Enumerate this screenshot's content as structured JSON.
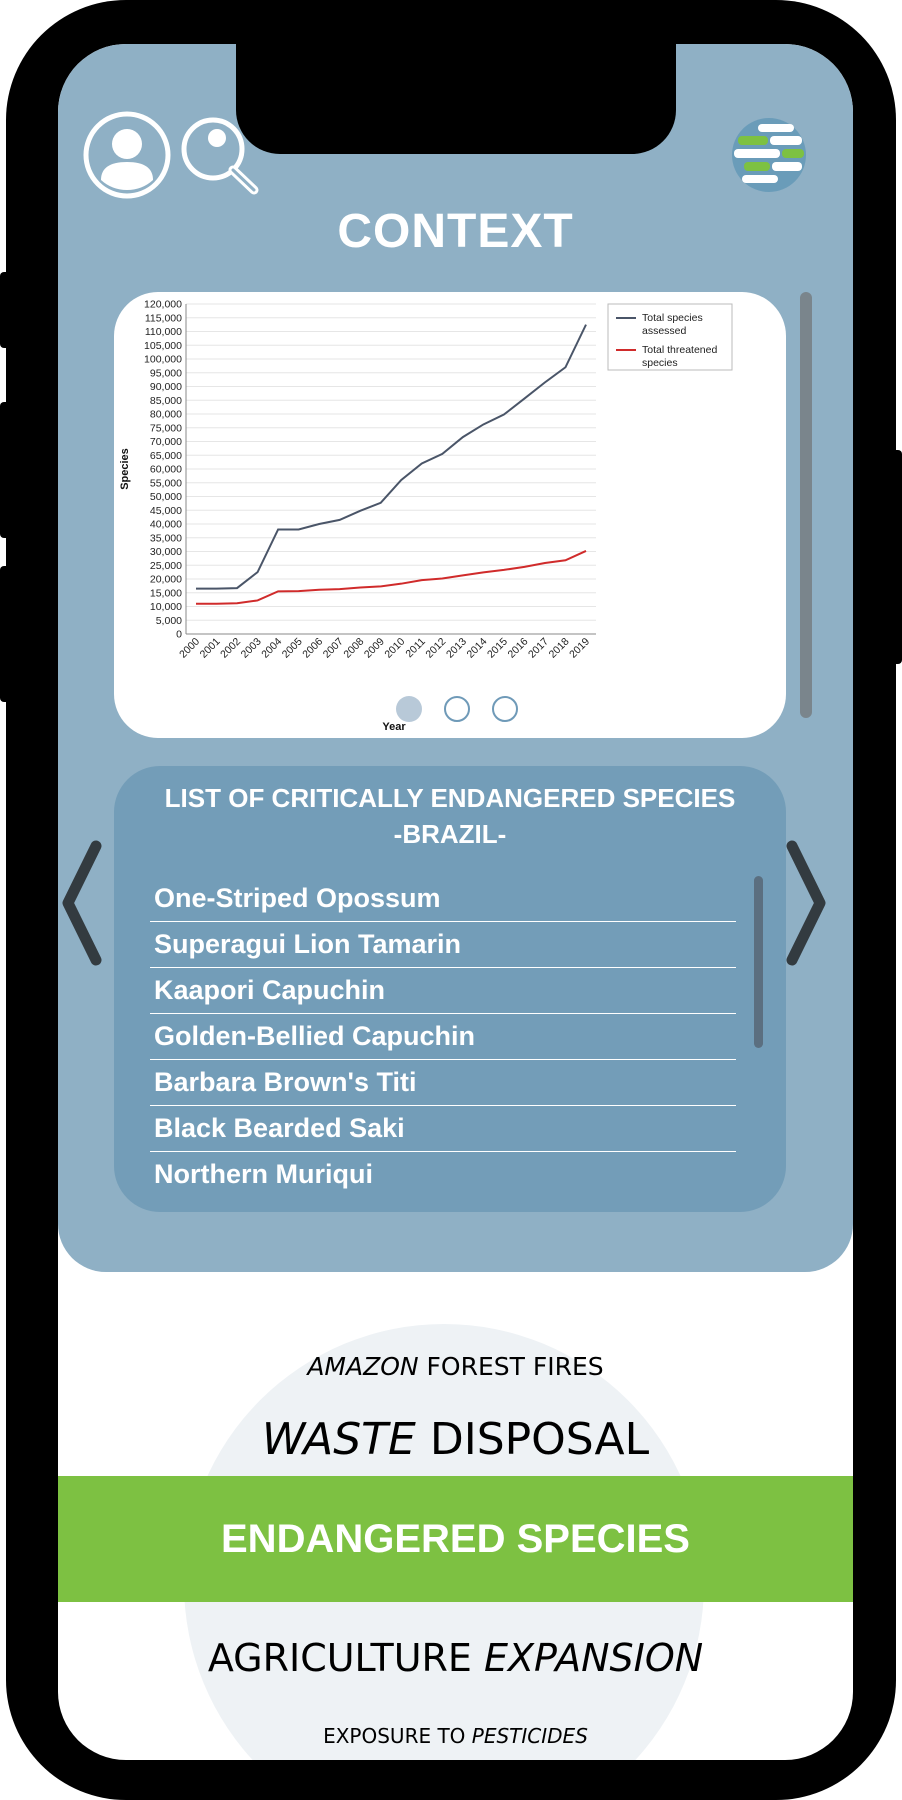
{
  "header": {
    "title": "CONTEXT",
    "icons": [
      "user-icon",
      "search-icon",
      "globe-logo-icon"
    ]
  },
  "chart_data": {
    "type": "line",
    "title": "",
    "xlabel": "Year",
    "ylabel": "Species",
    "x": [
      "2000",
      "2001",
      "2002",
      "2003",
      "2004",
      "2005",
      "2006",
      "2007",
      "2008",
      "2009",
      "2010",
      "2011",
      "2012",
      "2013",
      "2014",
      "2015",
      "2016",
      "2017",
      "2018",
      "2019"
    ],
    "ylim": [
      0,
      120000
    ],
    "yticks": [
      "0",
      "5,000",
      "10,000",
      "15,000",
      "20,000",
      "25,000",
      "30,000",
      "35,000",
      "40,000",
      "45,000",
      "50,000",
      "55,000",
      "60,000",
      "65,000",
      "70,000",
      "75,000",
      "80,000",
      "85,000",
      "90,000",
      "95,000",
      "100,000",
      "105,000",
      "110,000",
      "115,000",
      "120,000"
    ],
    "grid": true,
    "legend": "top-right",
    "series": [
      {
        "name": "Total species assessed",
        "color": "#4a5568",
        "values": [
          16500,
          16500,
          16700,
          22500,
          38000,
          38000,
          40000,
          41500,
          44800,
          47700,
          56000,
          62000,
          65500,
          71600,
          76200,
          79800,
          85600,
          91500,
          97000,
          112500
        ]
      },
      {
        "name": "Total threatened species",
        "color": "#d02b2b",
        "values": [
          11000,
          11000,
          11200,
          12200,
          15500,
          15600,
          16100,
          16300,
          16900,
          17300,
          18300,
          19600,
          20200,
          21300,
          22400,
          23300,
          24400,
          25800,
          26800,
          30200
        ]
      }
    ]
  },
  "carousel": {
    "dots": [
      {
        "state": "active"
      },
      {
        "state": "inactive"
      },
      {
        "state": "inactive"
      }
    ]
  },
  "species_list": {
    "title_line1": "LIST OF CRITICALLY ENDANGERED SPECIES",
    "title_line2": "-BRAZIL-",
    "items": [
      "One-Striped Opossum",
      "Superagui Lion Tamarin",
      "Kaapori Capuchin",
      "Golden-Bellied Capuchin",
      "Barbara Brown's Titi",
      "Black Bearded Saki",
      "Northern Muriqui"
    ]
  },
  "topics": {
    "t1_italic": "AMAZON",
    "t1_rest": " FOREST FIRES",
    "t2_italic": "WASTE",
    "t2_rest": " DISPOSAL",
    "active": "ENDANGERED SPECIES",
    "t4_plain": "AGRICULTURE ",
    "t4_italic": "EXPANSION",
    "t5_plain": "EXPOSURE TO ",
    "t5_italic": "PESTICIDES"
  },
  "colors": {
    "panel": "#8fb0c5",
    "list_card": "#739db8",
    "accent_green": "#7dc142"
  }
}
